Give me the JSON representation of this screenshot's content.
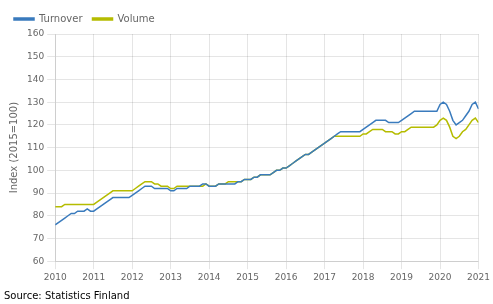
{
  "chart_data": {
    "type": "line",
    "ylabel": "Index (2015=100)",
    "source": "Source: Statistics Finland",
    "x": [
      2010.0,
      2010.083,
      2010.167,
      2010.25,
      2010.333,
      2010.417,
      2010.5,
      2010.583,
      2010.667,
      2010.75,
      2010.833,
      2010.917,
      2011.0,
      2011.083,
      2011.167,
      2011.25,
      2011.333,
      2011.417,
      2011.5,
      2011.583,
      2011.667,
      2011.75,
      2011.833,
      2011.917,
      2012.0,
      2012.083,
      2012.167,
      2012.25,
      2012.333,
      2012.417,
      2012.5,
      2012.583,
      2012.667,
      2012.75,
      2012.833,
      2012.917,
      2013.0,
      2013.083,
      2013.167,
      2013.25,
      2013.333,
      2013.417,
      2013.5,
      2013.583,
      2013.667,
      2013.75,
      2013.833,
      2013.917,
      2014.0,
      2014.083,
      2014.167,
      2014.25,
      2014.333,
      2014.417,
      2014.5,
      2014.583,
      2014.667,
      2014.75,
      2014.833,
      2014.917,
      2015.0,
      2015.083,
      2015.167,
      2015.25,
      2015.333,
      2015.417,
      2015.5,
      2015.583,
      2015.667,
      2015.75,
      2015.833,
      2015.917,
      2016.0,
      2016.083,
      2016.167,
      2016.25,
      2016.333,
      2016.417,
      2016.5,
      2016.583,
      2016.667,
      2016.75,
      2016.833,
      2016.917,
      2017.0,
      2017.083,
      2017.167,
      2017.25,
      2017.333,
      2017.417,
      2017.5,
      2017.583,
      2017.667,
      2017.75,
      2017.833,
      2017.917,
      2018.0,
      2018.083,
      2018.167,
      2018.25,
      2018.333,
      2018.417,
      2018.5,
      2018.583,
      2018.667,
      2018.75,
      2018.833,
      2018.917,
      2019.0,
      2019.083,
      2019.167,
      2019.25,
      2019.333,
      2019.417,
      2019.5,
      2019.583,
      2019.667,
      2019.75,
      2019.833,
      2019.917,
      2020.0,
      2020.083,
      2020.167,
      2020.25,
      2020.333,
      2020.417,
      2020.5,
      2020.583,
      2020.667,
      2020.75,
      2020.833,
      2020.917,
      2021.0
    ],
    "series": [
      {
        "name": "Turnover",
        "color": "#3a7bbd",
        "values": [
          76,
          77,
          78,
          79,
          80,
          81,
          81,
          82,
          82,
          82,
          83,
          82,
          82,
          83,
          84,
          85,
          86,
          87,
          88,
          88,
          88,
          88,
          88,
          88,
          89,
          90,
          91,
          92,
          93,
          93,
          93,
          92,
          92,
          92,
          92,
          92,
          91,
          91,
          92,
          92,
          92,
          92,
          93,
          93,
          93,
          93,
          94,
          94,
          93,
          93,
          93,
          94,
          94,
          94,
          94,
          94,
          94,
          95,
          95,
          96,
          96,
          96,
          97,
          97,
          98,
          98,
          98,
          98,
          99,
          100,
          100,
          101,
          101,
          102,
          103,
          104,
          105,
          106,
          107,
          107,
          108,
          109,
          110,
          111,
          112,
          113,
          114,
          115,
          116,
          117,
          117,
          117,
          117,
          117,
          117,
          117,
          118,
          119,
          120,
          121,
          122,
          122,
          122,
          122,
          121,
          121,
          121,
          121,
          122,
          123,
          124,
          125,
          126,
          126,
          126,
          126,
          126,
          126,
          126,
          126,
          129,
          130,
          129,
          126,
          122,
          120,
          121,
          122,
          124,
          126,
          129,
          130,
          127
        ]
      },
      {
        "name": "Volume",
        "color": "#b5bc00",
        "values": [
          84,
          84,
          84,
          85,
          85,
          85,
          85,
          85,
          85,
          85,
          85,
          85,
          85,
          86,
          87,
          88,
          89,
          90,
          91,
          91,
          91,
          91,
          91,
          91,
          91,
          92,
          93,
          94,
          95,
          95,
          95,
          94,
          94,
          93,
          93,
          93,
          92,
          92,
          93,
          93,
          93,
          93,
          93,
          93,
          93,
          93,
          93,
          94,
          93,
          93,
          93,
          94,
          94,
          94,
          95,
          95,
          95,
          95,
          95,
          96,
          96,
          96,
          97,
          97,
          98,
          98,
          98,
          98,
          99,
          100,
          100,
          101,
          101,
          102,
          103,
          104,
          105,
          106,
          107,
          107,
          108,
          109,
          110,
          111,
          112,
          113,
          114,
          115,
          115,
          115,
          115,
          115,
          115,
          115,
          115,
          115,
          116,
          116,
          117,
          118,
          118,
          118,
          118,
          117,
          117,
          117,
          116,
          116,
          117,
          117,
          118,
          119,
          119,
          119,
          119,
          119,
          119,
          119,
          119,
          120,
          122,
          123,
          122,
          119,
          115,
          114,
          115,
          117,
          118,
          120,
          122,
          123,
          121
        ]
      }
    ],
    "xlim": [
      2010,
      2021
    ],
    "xticks": [
      2010,
      2011,
      2012,
      2013,
      2014,
      2015,
      2016,
      2017,
      2018,
      2019,
      2020,
      2021
    ],
    "ylim": [
      60,
      160
    ],
    "yticks": [
      60,
      70,
      80,
      90,
      100,
      110,
      120,
      130,
      140,
      150,
      160
    ],
    "grid": true,
    "legend": "upper left"
  }
}
